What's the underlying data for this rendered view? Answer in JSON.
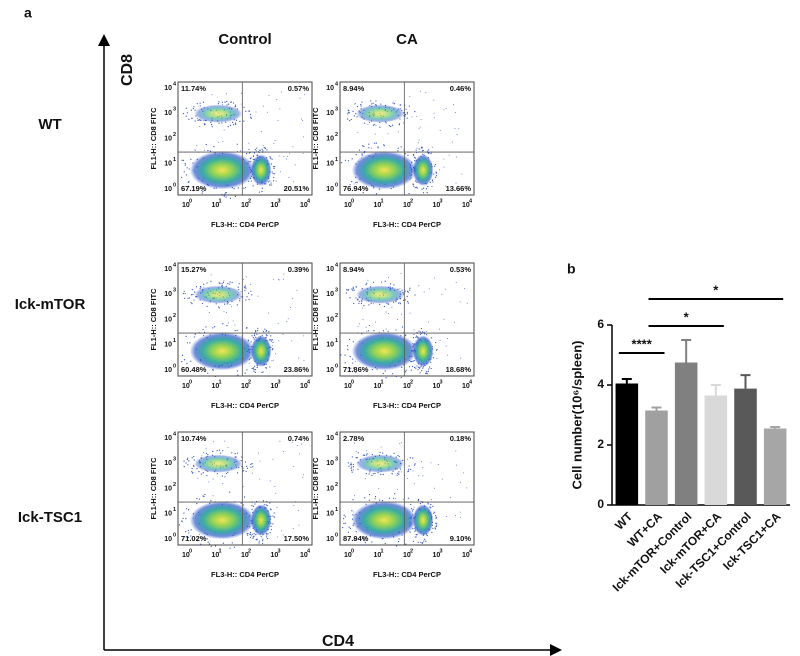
{
  "panel_a": {
    "label": "a",
    "x_axis": "CD4",
    "y_axis": "CD8",
    "columns": [
      "Control",
      "CA"
    ],
    "rows": [
      "WT",
      "Ick-mTOR",
      "Ick-TSC1"
    ],
    "tick_base": "10",
    "tick_exponents": [
      "0",
      "1",
      "2",
      "3",
      "4"
    ],
    "plot_x_label": "FL3-H:: CD4 PerCP",
    "plot_y_label": "FL1-H:: CD8 FITC",
    "plots": [
      {
        "quadrants": [
          "11.74%",
          "0.57%",
          "67.19%",
          "20.51%"
        ]
      },
      {
        "quadrants": [
          "8.94%",
          "0.46%",
          "76.94%",
          "13.66%"
        ]
      },
      {
        "quadrants": [
          "15.27%",
          "0.39%",
          "60.48%",
          "23.86%"
        ]
      },
      {
        "quadrants": [
          "8.94%",
          "0.53%",
          "71.86%",
          "18.68%"
        ]
      },
      {
        "quadrants": [
          "10.74%",
          "0.74%",
          "71.02%",
          "17.50%"
        ]
      },
      {
        "quadrants": [
          "2.78%",
          "0.18%",
          "87.94%",
          "9.10%"
        ]
      }
    ]
  },
  "chart_data": {
    "type": "bar",
    "label": "b",
    "y_label": "Cell number(10⁶/spleen)",
    "categories": [
      "WT",
      "WT+CA",
      "Ick-mTOR+Control",
      "Ick-mTOR+CA",
      "Ick-TSC1+Control",
      "Ick-TSC1+CA"
    ],
    "values": [
      4.05,
      3.15,
      4.75,
      3.65,
      3.88,
      2.55
    ],
    "errors": [
      0.15,
      0.1,
      0.75,
      0.35,
      0.45,
      0.05
    ],
    "colors": [
      "#000000",
      "#a0a0a0",
      "#808080",
      "#d9d9d9",
      "#595959",
      "#a6a6a6"
    ],
    "ylim": [
      0,
      6
    ],
    "yticks": [
      0,
      2,
      4,
      6
    ],
    "significance": [
      {
        "from": 0,
        "to": 1,
        "label": "****"
      },
      {
        "from": 1,
        "to": 3,
        "label": "*"
      },
      {
        "from": 1,
        "to": 5,
        "label": "*"
      }
    ]
  }
}
